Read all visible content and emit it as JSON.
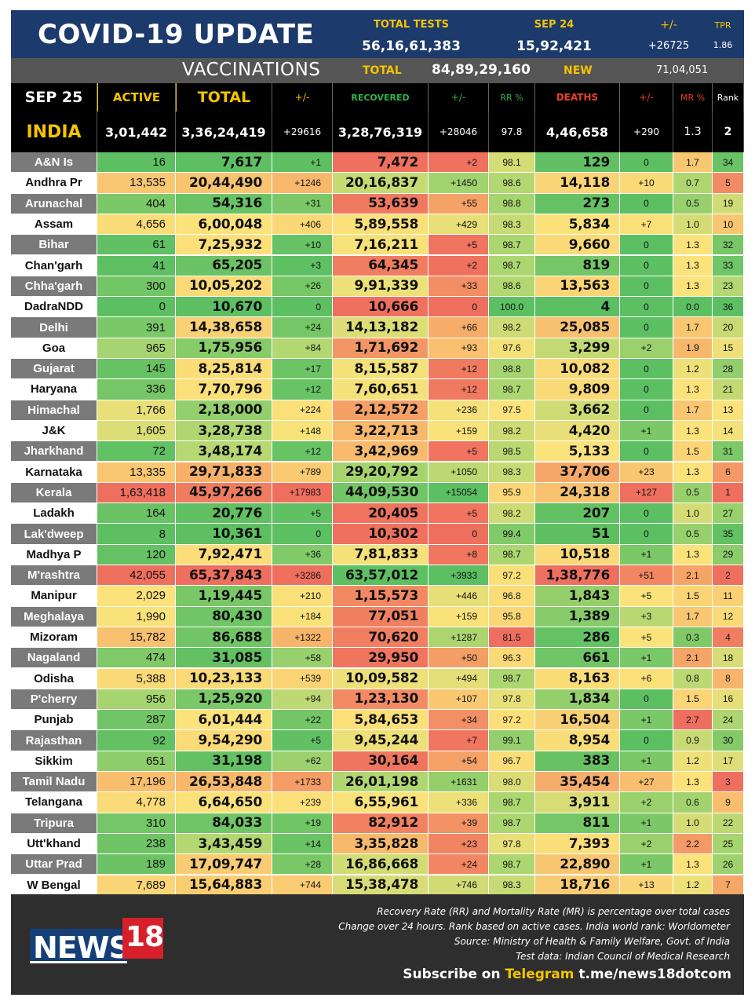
{
  "header": {
    "title": "COVID-19 UPDATE",
    "total_tests_label": "TOTAL TESTS",
    "total_tests": "56,16,61,383",
    "date_label": "SEP 24",
    "date_tests": "15,92,421",
    "change_label": "+/-",
    "change": "+26725",
    "tpr_label": "TPR",
    "tpr": "1.86"
  },
  "vaccinations": {
    "label": "VACCINATIONS",
    "total_label": "TOTAL",
    "total": "84,89,29,160",
    "new_label": "NEW",
    "new": "71,04,051"
  },
  "columns": {
    "date": "SEP 25",
    "active": "ACTIVE",
    "total": "TOTAL",
    "total_change": "+/-",
    "recovered": "RECOVERED",
    "recovered_change": "+/-",
    "rr": "RR %",
    "deaths": "DEATHS",
    "deaths_change": "+/-",
    "mr": "MR %",
    "rank": "Rank"
  },
  "india": {
    "name": "INDIA",
    "active": "3,01,442",
    "total": "3,36,24,419",
    "total_change": "+29616",
    "recovered": "3,28,76,319",
    "recovered_change": "+28046",
    "rr": "97.8",
    "deaths": "4,46,658",
    "deaths_change": "+290",
    "mr": "1.3",
    "rank": "2"
  },
  "colors": {
    "header_bg": "#1c3a6b",
    "accent_yellow": "#f5c400",
    "recovered_green": "#2fb34a",
    "deaths_red": "#e8402a",
    "state_bg_grey": "#7a7a7a",
    "green_strong": "#5cbf62",
    "green_light": "#a9d570",
    "yellow": "#fbe27a",
    "orange": "#f7b56b",
    "red": "#ef6f5e"
  },
  "rows": [
    {
      "state": "A&N Is",
      "active": "16",
      "total": "7,617",
      "total_change": "+1",
      "recovered": "7,472",
      "recovered_change": "+2",
      "rr": "98.1",
      "deaths": "129",
      "deaths_change": "0",
      "mr": "1.7",
      "rank": "34"
    },
    {
      "state": "Andhra Pr",
      "active": "13,535",
      "total": "20,44,490",
      "total_change": "+1246",
      "recovered": "20,16,837",
      "recovered_change": "+1450",
      "rr": "98.6",
      "deaths": "14,118",
      "deaths_change": "+10",
      "mr": "0.7",
      "rank": "5"
    },
    {
      "state": "Arunachal",
      "active": "404",
      "total": "54,316",
      "total_change": "+31",
      "recovered": "53,639",
      "recovered_change": "+55",
      "rr": "98.8",
      "deaths": "273",
      "deaths_change": "0",
      "mr": "0.5",
      "rank": "19"
    },
    {
      "state": "Assam",
      "active": "4,656",
      "total": "6,00,048",
      "total_change": "+406",
      "recovered": "5,89,558",
      "recovered_change": "+429",
      "rr": "98.3",
      "deaths": "5,834",
      "deaths_change": "+7",
      "mr": "1.0",
      "rank": "10"
    },
    {
      "state": "Bihar",
      "active": "61",
      "total": "7,25,932",
      "total_change": "+10",
      "recovered": "7,16,211",
      "recovered_change": "+5",
      "rr": "98.7",
      "deaths": "9,660",
      "deaths_change": "0",
      "mr": "1.3",
      "rank": "32"
    },
    {
      "state": "Chan'garh",
      "active": "41",
      "total": "65,205",
      "total_change": "+3",
      "recovered": "64,345",
      "recovered_change": "+2",
      "rr": "98.7",
      "deaths": "819",
      "deaths_change": "0",
      "mr": "1.3",
      "rank": "33"
    },
    {
      "state": "Chha'garh",
      "active": "300",
      "total": "10,05,202",
      "total_change": "+26",
      "recovered": "9,91,339",
      "recovered_change": "+33",
      "rr": "98.6",
      "deaths": "13,563",
      "deaths_change": "0",
      "mr": "1.3",
      "rank": "23"
    },
    {
      "state": "DadraNDD",
      "active": "0",
      "total": "10,670",
      "total_change": "0",
      "recovered": "10,666",
      "recovered_change": "0",
      "rr": "100.0",
      "deaths": "4",
      "deaths_change": "0",
      "mr": "0.0",
      "rank": "36"
    },
    {
      "state": "Delhi",
      "active": "391",
      "total": "14,38,658",
      "total_change": "+24",
      "recovered": "14,13,182",
      "recovered_change": "+66",
      "rr": "98.2",
      "deaths": "25,085",
      "deaths_change": "0",
      "mr": "1.7",
      "rank": "20"
    },
    {
      "state": "Goa",
      "active": "965",
      "total": "1,75,956",
      "total_change": "+84",
      "recovered": "1,71,692",
      "recovered_change": "+93",
      "rr": "97.6",
      "deaths": "3,299",
      "deaths_change": "+2",
      "mr": "1.9",
      "rank": "15"
    },
    {
      "state": "Gujarat",
      "active": "145",
      "total": "8,25,814",
      "total_change": "+17",
      "recovered": "8,15,587",
      "recovered_change": "+12",
      "rr": "98.8",
      "deaths": "10,082",
      "deaths_change": "0",
      "mr": "1.2",
      "rank": "28"
    },
    {
      "state": "Haryana",
      "active": "336",
      "total": "7,70,796",
      "total_change": "+12",
      "recovered": "7,60,651",
      "recovered_change": "+12",
      "rr": "98.7",
      "deaths": "9,809",
      "deaths_change": "0",
      "mr": "1.3",
      "rank": "21"
    },
    {
      "state": "Himachal",
      "active": "1,766",
      "total": "2,18,000",
      "total_change": "+224",
      "recovered": "2,12,572",
      "recovered_change": "+236",
      "rr": "97.5",
      "deaths": "3,662",
      "deaths_change": "0",
      "mr": "1.7",
      "rank": "13"
    },
    {
      "state": "J&K",
      "active": "1,605",
      "total": "3,28,738",
      "total_change": "+148",
      "recovered": "3,22,713",
      "recovered_change": "+159",
      "rr": "98.2",
      "deaths": "4,420",
      "deaths_change": "+1",
      "mr": "1.3",
      "rank": "14"
    },
    {
      "state": "Jharkhand",
      "active": "72",
      "total": "3,48,174",
      "total_change": "+12",
      "recovered": "3,42,969",
      "recovered_change": "+5",
      "rr": "98.5",
      "deaths": "5,133",
      "deaths_change": "0",
      "mr": "1.5",
      "rank": "31"
    },
    {
      "state": "Karnataka",
      "active": "13,335",
      "total": "29,71,833",
      "total_change": "+789",
      "recovered": "29,20,792",
      "recovered_change": "+1050",
      "rr": "98.3",
      "deaths": "37,706",
      "deaths_change": "+23",
      "mr": "1.3",
      "rank": "6"
    },
    {
      "state": "Kerala",
      "active": "1,63,418",
      "total": "45,97,266",
      "total_change": "+17983",
      "recovered": "44,09,530",
      "recovered_change": "+15054",
      "rr": "95.9",
      "deaths": "24,318",
      "deaths_change": "+127",
      "mr": "0.5",
      "rank": "1"
    },
    {
      "state": "Ladakh",
      "active": "164",
      "total": "20,776",
      "total_change": "+5",
      "recovered": "20,405",
      "recovered_change": "+5",
      "rr": "98.2",
      "deaths": "207",
      "deaths_change": "0",
      "mr": "1.0",
      "rank": "27"
    },
    {
      "state": "Lak'dweep",
      "active": "8",
      "total": "10,361",
      "total_change": "0",
      "recovered": "10,302",
      "recovered_change": "0",
      "rr": "99.4",
      "deaths": "51",
      "deaths_change": "0",
      "mr": "0.5",
      "rank": "35"
    },
    {
      "state": "Madhya P",
      "active": "120",
      "total": "7,92,471",
      "total_change": "+36",
      "recovered": "7,81,833",
      "recovered_change": "+8",
      "rr": "98.7",
      "deaths": "10,518",
      "deaths_change": "+1",
      "mr": "1.3",
      "rank": "29"
    },
    {
      "state": "M'rashtra",
      "active": "42,055",
      "total": "65,37,843",
      "total_change": "+3286",
      "recovered": "63,57,012",
      "recovered_change": "+3933",
      "rr": "97.2",
      "deaths": "1,38,776",
      "deaths_change": "+51",
      "mr": "2.1",
      "rank": "2"
    },
    {
      "state": "Manipur",
      "active": "2,029",
      "total": "1,19,445",
      "total_change": "+210",
      "recovered": "1,15,573",
      "recovered_change": "+446",
      "rr": "96.8",
      "deaths": "1,843",
      "deaths_change": "+5",
      "mr": "1.5",
      "rank": "11"
    },
    {
      "state": "Meghalaya",
      "active": "1,990",
      "total": "80,430",
      "total_change": "+184",
      "recovered": "77,051",
      "recovered_change": "+159",
      "rr": "95.8",
      "deaths": "1,389",
      "deaths_change": "+3",
      "mr": "1.7",
      "rank": "12"
    },
    {
      "state": "Mizoram",
      "active": "15,782",
      "total": "86,688",
      "total_change": "+1322",
      "recovered": "70,620",
      "recovered_change": "+1287",
      "rr": "81.5",
      "deaths": "286",
      "deaths_change": "+5",
      "mr": "0.3",
      "rank": "4"
    },
    {
      "state": "Nagaland",
      "active": "474",
      "total": "31,085",
      "total_change": "+58",
      "recovered": "29,950",
      "recovered_change": "+50",
      "rr": "96.3",
      "deaths": "661",
      "deaths_change": "+1",
      "mr": "2.1",
      "rank": "18"
    },
    {
      "state": "Odisha",
      "active": "5,388",
      "total": "10,23,133",
      "total_change": "+539",
      "recovered": "10,09,582",
      "recovered_change": "+494",
      "rr": "98.7",
      "deaths": "8,163",
      "deaths_change": "+6",
      "mr": "0.8",
      "rank": "8"
    },
    {
      "state": "P'cherry",
      "active": "956",
      "total": "1,25,920",
      "total_change": "+94",
      "recovered": "1,23,130",
      "recovered_change": "+107",
      "rr": "97.8",
      "deaths": "1,834",
      "deaths_change": "0",
      "mr": "1.5",
      "rank": "16"
    },
    {
      "state": "Punjab",
      "active": "287",
      "total": "6,01,444",
      "total_change": "+22",
      "recovered": "5,84,653",
      "recovered_change": "+34",
      "rr": "97.2",
      "deaths": "16,504",
      "deaths_change": "+1",
      "mr": "2.7",
      "rank": "24"
    },
    {
      "state": "Rajasthan",
      "active": "92",
      "total": "9,54,290",
      "total_change": "+5",
      "recovered": "9,45,244",
      "recovered_change": "+7",
      "rr": "99.1",
      "deaths": "8,954",
      "deaths_change": "0",
      "mr": "0.9",
      "rank": "30"
    },
    {
      "state": "Sikkim",
      "active": "651",
      "total": "31,198",
      "total_change": "+62",
      "recovered": "30,164",
      "recovered_change": "+54",
      "rr": "96.7",
      "deaths": "383",
      "deaths_change": "+1",
      "mr": "1.2",
      "rank": "17"
    },
    {
      "state": "Tamil Nadu",
      "active": "17,196",
      "total": "26,53,848",
      "total_change": "+1733",
      "recovered": "26,01,198",
      "recovered_change": "+1631",
      "rr": "98.0",
      "deaths": "35,454",
      "deaths_change": "+27",
      "mr": "1.3",
      "rank": "3"
    },
    {
      "state": "Telangana",
      "active": "4,778",
      "total": "6,64,650",
      "total_change": "+239",
      "recovered": "6,55,961",
      "recovered_change": "+336",
      "rr": "98.7",
      "deaths": "3,911",
      "deaths_change": "+2",
      "mr": "0.6",
      "rank": "9"
    },
    {
      "state": "Tripura",
      "active": "310",
      "total": "84,033",
      "total_change": "+19",
      "recovered": "82,912",
      "recovered_change": "+39",
      "rr": "98.7",
      "deaths": "811",
      "deaths_change": "+1",
      "mr": "1.0",
      "rank": "22"
    },
    {
      "state": "Utt'khand",
      "active": "238",
      "total": "3,43,459",
      "total_change": "+14",
      "recovered": "3,35,828",
      "recovered_change": "+23",
      "rr": "97.8",
      "deaths": "7,393",
      "deaths_change": "+2",
      "mr": "2.2",
      "rank": "25"
    },
    {
      "state": "Uttar Prad",
      "active": "189",
      "total": "17,09,747",
      "total_change": "+28",
      "recovered": "16,86,668",
      "recovered_change": "+24",
      "rr": "98.7",
      "deaths": "22,890",
      "deaths_change": "+1",
      "mr": "1.3",
      "rank": "26"
    },
    {
      "state": "W Bengal",
      "active": "7,689",
      "total": "15,64,883",
      "total_change": "+744",
      "recovered": "15,38,478",
      "recovered_change": "+746",
      "rr": "98.3",
      "deaths": "18,716",
      "deaths_change": "+13",
      "mr": "1.2",
      "rank": "7"
    }
  ],
  "footer": {
    "logo_text": "NEWS",
    "logo_number": "18",
    "note1": "Recovery Rate (RR) and Mortality Rate (MR) is percentage over total cases",
    "note2": "Change over 24 hours. Rank based on active cases. India world rank: Worldometer",
    "note3": "Source: Ministry of Health & Family Welfare, Govt. of India",
    "note4": "Test data: Indian Council of Medical Research",
    "subscribe_prefix": "Subscribe on ",
    "subscribe_platform": "Telegram",
    "subscribe_link": " t.me/news18dotcom"
  }
}
